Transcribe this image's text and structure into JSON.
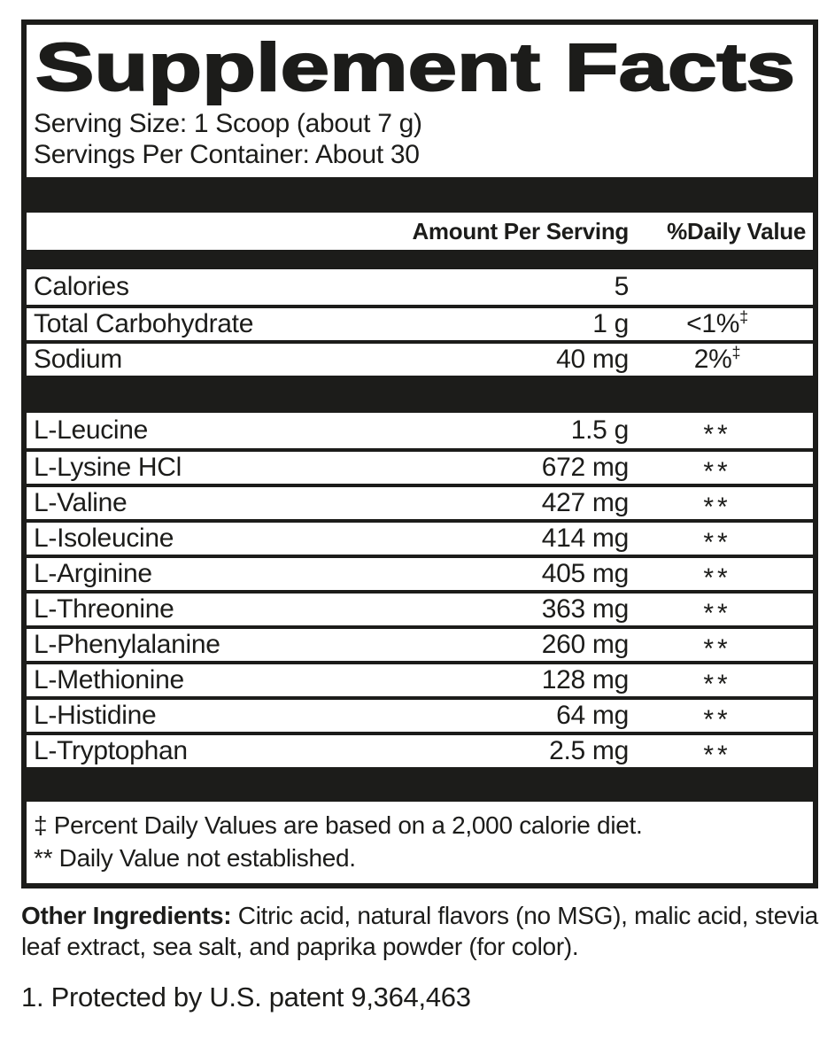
{
  "label": {
    "title": "Supplement Facts",
    "serving_size": "Serving Size: 1 Scoop (about 7 g)",
    "servings_per_container": "Servings Per Container: About 30",
    "header": {
      "amount": "Amount Per Serving",
      "daily_value": "%Daily Value"
    },
    "nutrients": [
      {
        "name": "Calories",
        "amount": "5",
        "dv": "",
        "dv_sup": ""
      },
      {
        "name": "Total Carbohydrate",
        "amount": "1 g",
        "dv": "<1%",
        "dv_sup": "‡"
      },
      {
        "name": "Sodium",
        "amount": "40 mg",
        "dv": "2%",
        "dv_sup": "‡"
      }
    ],
    "amino_acids": [
      {
        "name": "L-Leucine",
        "amount": "1.5 g",
        "dv": "**"
      },
      {
        "name": "L-Lysine HCl",
        "amount": "672 mg",
        "dv": "**"
      },
      {
        "name": "L-Valine",
        "amount": "427 mg",
        "dv": "**"
      },
      {
        "name": "L-Isoleucine",
        "amount": "414 mg",
        "dv": "**"
      },
      {
        "name": "L-Arginine",
        "amount": "405 mg",
        "dv": "**"
      },
      {
        "name": "L-Threonine",
        "amount": "363 mg",
        "dv": "**"
      },
      {
        "name": "L-Phenylalanine",
        "amount": "260 mg",
        "dv": "**"
      },
      {
        "name": "L-Methionine",
        "amount": "128 mg",
        "dv": "**"
      },
      {
        "name": "L-Histidine",
        "amount": "64 mg",
        "dv": "**"
      },
      {
        "name": "L-Tryptophan",
        "amount": "2.5 mg",
        "dv": "**"
      }
    ],
    "footnotes": [
      "‡ Percent Daily Values are based on a 2,000 calorie diet.",
      "** Daily Value not established."
    ]
  },
  "other_ingredients": {
    "label": "Other Ingredients:",
    "text": " Citric acid, natural flavors (no MSG), malic acid, stevia leaf extract, sea salt, and paprika powder (for color)."
  },
  "patent": "1. Protected by U.S. patent 9,364,463",
  "colors": {
    "ink": "#1c1c1a",
    "background": "#ffffff"
  }
}
